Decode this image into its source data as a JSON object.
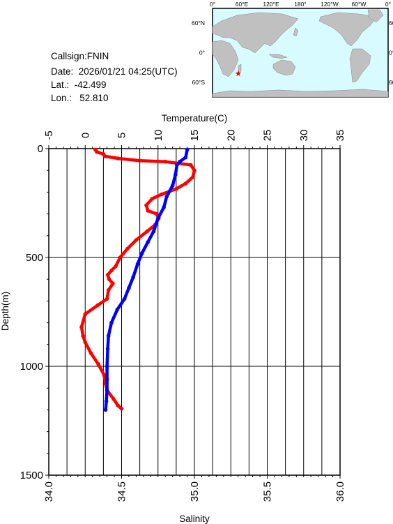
{
  "station": {
    "callsign_line": "Callsign:FNIN",
    "date_line": "Date:  2026/01/21 04:25(UTC)",
    "lat_line": "Lat.:  -42.499",
    "lon_line": "Lon.:   52.810"
  },
  "map": {
    "top_labels": [
      "0°",
      "60°E",
      "120°E",
      "180°",
      "120°W",
      "60°W",
      "0°"
    ],
    "side_labels": [
      "60°N",
      "0°",
      "60°S"
    ],
    "station_lon": 52.81,
    "station_lat": -42.499,
    "colors": {
      "ocean": "#d8fbff",
      "land": "#c0c0c0",
      "marker": "#ff0000"
    }
  },
  "chart_data": {
    "type": "line",
    "top_axis": {
      "label": "Temperature(C)",
      "range": [
        -5,
        35
      ],
      "ticks": [
        -5,
        0,
        5,
        10,
        15,
        20,
        25,
        30,
        35
      ]
    },
    "bottom_axis": {
      "label": "Salinity",
      "range": [
        34.0,
        36.0
      ],
      "ticks": [
        "34.0",
        "34.5",
        "35.0",
        "35.5",
        "36.0"
      ]
    },
    "left_axis": {
      "label": "Depth(m)",
      "range": [
        0,
        1500
      ],
      "inverted": true,
      "ticks": [
        0,
        500,
        1000,
        1500
      ]
    },
    "grid": true,
    "series": [
      {
        "quantity": "temperature",
        "axis": "top",
        "color": "#ff0000",
        "points": [
          [
            1.4,
            5
          ],
          [
            1.6,
            15
          ],
          [
            2.5,
            25
          ],
          [
            2.7,
            35
          ],
          [
            4.5,
            45
          ],
          [
            7.5,
            55
          ],
          [
            11.0,
            60
          ],
          [
            14.5,
            75
          ],
          [
            15.0,
            100
          ],
          [
            14.8,
            130
          ],
          [
            13.8,
            160
          ],
          [
            12.5,
            185
          ],
          [
            10.5,
            210
          ],
          [
            9.2,
            230
          ],
          [
            8.4,
            260
          ],
          [
            8.6,
            285
          ],
          [
            9.8,
            300
          ],
          [
            10.1,
            320
          ],
          [
            9.6,
            350
          ],
          [
            8.5,
            380
          ],
          [
            7.0,
            420
          ],
          [
            5.8,
            460
          ],
          [
            4.8,
            500
          ],
          [
            4.2,
            540
          ],
          [
            3.6,
            560
          ],
          [
            3.1,
            580
          ],
          [
            3.3,
            600
          ],
          [
            3.8,
            620
          ],
          [
            3.2,
            650
          ],
          [
            3.0,
            690
          ],
          [
            1.7,
            720
          ],
          [
            0.0,
            760
          ],
          [
            -0.5,
            820
          ],
          [
            -0.3,
            860
          ],
          [
            0.0,
            890
          ],
          [
            0.8,
            940
          ],
          [
            1.8,
            990
          ],
          [
            2.6,
            1040
          ],
          [
            2.8,
            1080
          ],
          [
            3.0,
            1110
          ],
          [
            3.9,
            1150
          ],
          [
            4.5,
            1180
          ],
          [
            5.0,
            1195
          ]
        ]
      },
      {
        "quantity": "salinity",
        "axis": "bottom",
        "color": "#0000ff",
        "points": [
          [
            34.95,
            5
          ],
          [
            34.94,
            40
          ],
          [
            34.9,
            60
          ],
          [
            34.88,
            75
          ],
          [
            34.87,
            120
          ],
          [
            34.85,
            170
          ],
          [
            34.81,
            220
          ],
          [
            34.79,
            270
          ],
          [
            34.75,
            320
          ],
          [
            34.72,
            380
          ],
          [
            34.68,
            430
          ],
          [
            34.64,
            480
          ],
          [
            34.61,
            530
          ],
          [
            34.58,
            590
          ],
          [
            34.55,
            640
          ],
          [
            34.52,
            690
          ],
          [
            34.47,
            740
          ],
          [
            34.43,
            800
          ],
          [
            34.41,
            860
          ],
          [
            34.405,
            920
          ],
          [
            34.4,
            1000
          ],
          [
            34.4,
            1060
          ],
          [
            34.4,
            1110
          ],
          [
            34.395,
            1160
          ],
          [
            34.39,
            1200
          ]
        ]
      }
    ]
  }
}
